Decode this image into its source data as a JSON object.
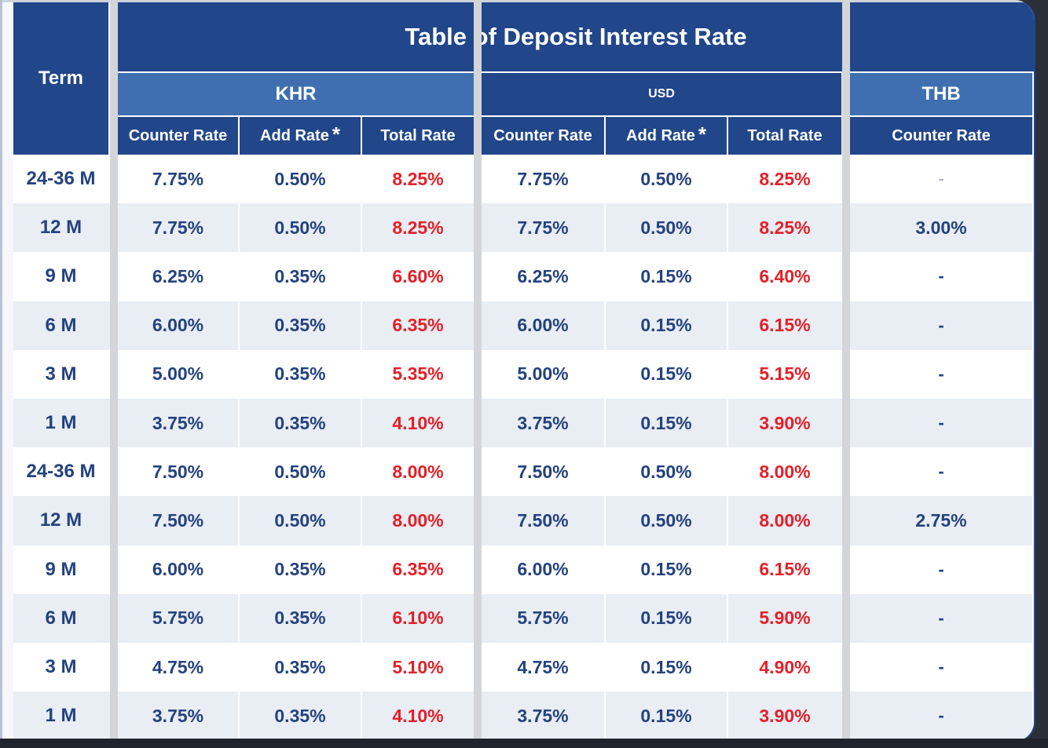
{
  "title": "Table of Deposit Interest Rate",
  "term_header": "Term",
  "currencies": [
    {
      "code": "KHR",
      "columns": [
        "Counter Rate",
        "Add Rate",
        "Total Rate"
      ]
    },
    {
      "code": "USD",
      "columns": [
        "Counter Rate",
        "Add Rate",
        "Total Rate"
      ]
    },
    {
      "code": "THB",
      "columns": [
        "Counter Rate"
      ]
    }
  ],
  "add_rate_marker": "*",
  "rows": [
    {
      "term": "24-36 M",
      "khr": [
        "7.75%",
        "0.50%",
        "8.25%"
      ],
      "usd": [
        "7.75%",
        "0.50%",
        "8.25%"
      ],
      "thb": "-"
    },
    {
      "term": "12 M",
      "khr": [
        "7.75%",
        "0.50%",
        "8.25%"
      ],
      "usd": [
        "7.75%",
        "0.50%",
        "8.25%"
      ],
      "thb": "3.00%"
    },
    {
      "term": "9 M",
      "khr": [
        "6.25%",
        "0.35%",
        "6.60%"
      ],
      "usd": [
        "6.25%",
        "0.15%",
        "6.40%"
      ],
      "thb": "-"
    },
    {
      "term": "6 M",
      "khr": [
        "6.00%",
        "0.35%",
        "6.35%"
      ],
      "usd": [
        "6.00%",
        "0.15%",
        "6.15%"
      ],
      "thb": "-"
    },
    {
      "term": "3 M",
      "khr": [
        "5.00%",
        "0.35%",
        "5.35%"
      ],
      "usd": [
        "5.00%",
        "0.15%",
        "5.15%"
      ],
      "thb": "-"
    },
    {
      "term": "1 M",
      "khr": [
        "3.75%",
        "0.35%",
        "4.10%"
      ],
      "usd": [
        "3.75%",
        "0.15%",
        "3.90%"
      ],
      "thb": "-"
    },
    {
      "term": "24-36 M",
      "khr": [
        "7.50%",
        "0.50%",
        "8.00%"
      ],
      "usd": [
        "7.50%",
        "0.50%",
        "8.00%"
      ],
      "thb": "-"
    },
    {
      "term": "12 M",
      "khr": [
        "7.50%",
        "0.50%",
        "8.00%"
      ],
      "usd": [
        "7.50%",
        "0.50%",
        "8.00%"
      ],
      "thb": "2.75%"
    },
    {
      "term": "9 M",
      "khr": [
        "6.00%",
        "0.35%",
        "6.35%"
      ],
      "usd": [
        "6.00%",
        "0.15%",
        "6.15%"
      ],
      "thb": "-"
    },
    {
      "term": "6 M",
      "khr": [
        "5.75%",
        "0.35%",
        "6.10%"
      ],
      "usd": [
        "5.75%",
        "0.15%",
        "5.90%"
      ],
      "thb": "-"
    },
    {
      "term": "3 M",
      "khr": [
        "4.75%",
        "0.35%",
        "5.10%"
      ],
      "usd": [
        "4.75%",
        "0.15%",
        "4.90%"
      ],
      "thb": "-"
    },
    {
      "term": "1 M",
      "khr": [
        "3.75%",
        "0.35%",
        "4.10%"
      ],
      "usd": [
        "3.75%",
        "0.15%",
        "3.90%"
      ],
      "thb": "-"
    }
  ],
  "colors": {
    "header_dark": "#21468a",
    "header_mid": "#3f6fb0",
    "row_light": "#ffffff",
    "row_shade": "#e9edf4",
    "value_text": "#24427e",
    "total_text": "#e32028"
  }
}
